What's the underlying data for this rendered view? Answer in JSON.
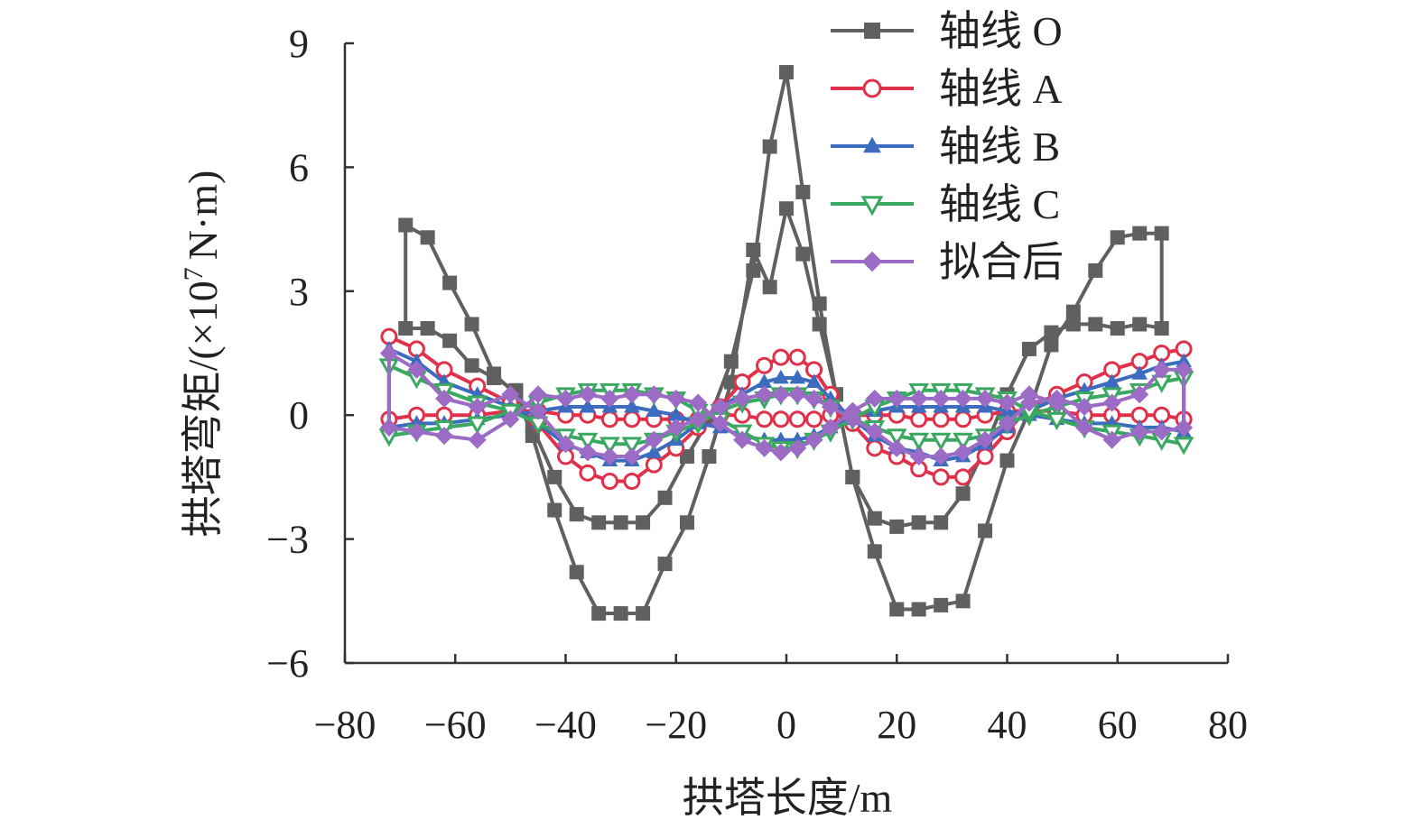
{
  "chart_data": {
    "type": "line",
    "title": "",
    "xlabel": "拱塔长度/m",
    "ylabel": "拱塔弯矩/(×10⁷ N·m)",
    "ylabel_parts": {
      "main": "拱塔弯矩/(",
      "times": "×10",
      "exp": "7",
      "unit": "N·m)"
    },
    "xlim": [
      -80,
      80
    ],
    "ylim": [
      -6,
      9
    ],
    "xticks": [
      -80,
      -60,
      -40,
      -20,
      0,
      20,
      40,
      60,
      80
    ],
    "yticks": [
      -6,
      -3,
      0,
      3,
      6,
      9
    ],
    "xtick_labels": [
      "−80",
      "−60",
      "−40",
      "−20",
      "0",
      "20",
      "40",
      "60",
      "80"
    ],
    "ytick_labels": [
      "−6",
      "−3",
      "0",
      "3",
      "6",
      "9"
    ],
    "grid": false,
    "legend_position": "top-right",
    "series": [
      {
        "name": "轴线 O",
        "color": "#606060",
        "marker": "square",
        "upper_x": [
          -69,
          -65,
          -61,
          -57,
          -53,
          -49,
          -46,
          -42,
          -38,
          -34,
          -30,
          -26,
          -22,
          -18,
          -14,
          -10,
          -6,
          -3,
          0,
          3,
          6,
          9,
          12,
          16,
          20,
          24,
          28,
          32,
          36,
          40,
          44,
          48,
          52,
          56,
          60,
          64,
          68
        ],
        "upper_y": [
          2.1,
          2.1,
          1.8,
          1.2,
          0.9,
          0.6,
          -0.3,
          -1.5,
          -2.4,
          -2.6,
          -2.6,
          -2.6,
          -2.0,
          -1.0,
          -0.1,
          1.3,
          3.5,
          6.5,
          8.3,
          5.4,
          2.7,
          0.5,
          -1.5,
          -2.5,
          -2.7,
          -2.6,
          -2.6,
          -1.9,
          -0.8,
          0.5,
          1.6,
          2.0,
          2.2,
          2.2,
          2.1,
          2.2,
          2.1
        ],
        "lower_x": [
          -69,
          -65,
          -61,
          -57,
          -53,
          -49,
          -46,
          -42,
          -38,
          -34,
          -30,
          -26,
          -22,
          -18,
          -14,
          -10,
          -6,
          -3,
          0,
          3,
          6,
          9,
          12,
          16,
          20,
          24,
          28,
          32,
          36,
          40,
          44,
          48,
          52,
          56,
          60,
          64,
          68
        ],
        "lower_y": [
          4.6,
          4.3,
          3.2,
          2.2,
          1.0,
          0.5,
          -0.5,
          -2.3,
          -3.8,
          -4.8,
          -4.8,
          -4.8,
          -3.6,
          -2.6,
          -1.0,
          0.8,
          4.0,
          3.1,
          5.0,
          3.9,
          2.2,
          0.5,
          -1.5,
          -3.3,
          -4.7,
          -4.7,
          -4.6,
          -4.5,
          -2.8,
          -1.1,
          0.1,
          1.7,
          2.5,
          3.5,
          4.3,
          4.4,
          4.4
        ]
      },
      {
        "name": "轴线 A",
        "color": "#e0304a",
        "marker": "circle-open",
        "upper_x": [
          -72,
          -67,
          -62,
          -56,
          -50,
          -45,
          -40,
          -36,
          -32,
          -28,
          -24,
          -20,
          -16,
          -12,
          -8,
          -4,
          -1,
          2,
          5,
          8,
          12,
          16,
          20,
          24,
          28,
          32,
          36,
          40,
          44,
          49,
          54,
          59,
          64,
          68,
          72
        ],
        "upper_y": [
          1.9,
          1.6,
          1.1,
          0.7,
          0.3,
          -0.2,
          -1.0,
          -1.4,
          -1.6,
          -1.6,
          -1.2,
          -0.8,
          -0.3,
          0.2,
          0.8,
          1.2,
          1.4,
          1.4,
          1.1,
          0.5,
          -0.2,
          -0.8,
          -1.0,
          -1.3,
          -1.5,
          -1.5,
          -1.0,
          -0.4,
          0.2,
          0.5,
          0.8,
          1.1,
          1.3,
          1.5,
          1.6
        ],
        "lower_x": [
          -72,
          -67,
          -62,
          -56,
          -50,
          -45,
          -40,
          -36,
          -32,
          -28,
          -24,
          -20,
          -16,
          -12,
          -8,
          -4,
          -1,
          2,
          5,
          8,
          12,
          16,
          20,
          24,
          28,
          32,
          36,
          40,
          44,
          49,
          54,
          59,
          64,
          68,
          72
        ],
        "lower_y": [
          -0.1,
          0.0,
          0.0,
          0.0,
          0.1,
          0.1,
          0.0,
          0.0,
          -0.1,
          -0.1,
          -0.1,
          -0.1,
          -0.1,
          0.0,
          0.0,
          -0.1,
          -0.1,
          -0.1,
          -0.1,
          0.0,
          0.0,
          0.0,
          0.0,
          -0.1,
          -0.1,
          -0.1,
          0.0,
          0.1,
          0.1,
          0.1,
          0.0,
          0.0,
          0.0,
          0.0,
          -0.1
        ]
      },
      {
        "name": "轴线 B",
        "color": "#3b6cc0",
        "marker": "triangle-up",
        "upper_x": [
          -72,
          -67,
          -62,
          -56,
          -50,
          -45,
          -40,
          -36,
          -32,
          -28,
          -24,
          -20,
          -16,
          -12,
          -8,
          -4,
          -1,
          2,
          5,
          8,
          12,
          16,
          20,
          24,
          28,
          32,
          36,
          40,
          44,
          49,
          54,
          59,
          64,
          68,
          72
        ],
        "upper_y": [
          1.6,
          1.3,
          0.8,
          0.5,
          0.2,
          -0.2,
          -0.7,
          -0.9,
          -1.1,
          -1.1,
          -0.9,
          -0.6,
          -0.2,
          0.2,
          0.5,
          0.8,
          0.9,
          0.9,
          0.8,
          0.4,
          -0.1,
          -0.5,
          -0.8,
          -0.9,
          -1.1,
          -1.0,
          -0.7,
          -0.3,
          0.1,
          0.4,
          0.6,
          0.8,
          1.0,
          1.2,
          1.3
        ],
        "lower_x": [
          -72,
          -67,
          -62,
          -56,
          -50,
          -45,
          -40,
          -36,
          -32,
          -28,
          -24,
          -20,
          -16,
          -12,
          -8,
          -4,
          -1,
          2,
          5,
          8,
          12,
          16,
          20,
          24,
          28,
          32,
          36,
          40,
          44,
          49,
          54,
          59,
          64,
          68,
          72
        ],
        "lower_y": [
          -0.3,
          -0.2,
          -0.2,
          -0.1,
          0.0,
          0.1,
          0.2,
          0.2,
          0.2,
          0.2,
          0.1,
          0.0,
          -0.2,
          -0.3,
          -0.5,
          -0.6,
          -0.6,
          -0.6,
          -0.5,
          -0.3,
          0.0,
          0.1,
          0.2,
          0.2,
          0.2,
          0.2,
          0.2,
          0.1,
          0.0,
          -0.1,
          -0.2,
          -0.2,
          -0.3,
          -0.3,
          -0.4
        ]
      },
      {
        "name": "轴线 C",
        "color": "#3aa860",
        "marker": "triangle-down-open",
        "upper_x": [
          -72,
          -67,
          -62,
          -56,
          -50,
          -45,
          -40,
          -36,
          -32,
          -28,
          -24,
          -20,
          -16,
          -12,
          -8,
          -4,
          -1,
          2,
          5,
          8,
          12,
          16,
          20,
          24,
          28,
          32,
          36,
          40,
          44,
          49,
          54,
          59,
          64,
          68,
          72
        ],
        "upper_y": [
          1.2,
          0.9,
          0.6,
          0.3,
          0.1,
          -0.2,
          -0.5,
          -0.6,
          -0.7,
          -0.7,
          -0.6,
          -0.4,
          -0.2,
          0.1,
          0.3,
          0.4,
          0.5,
          0.5,
          0.4,
          0.2,
          -0.1,
          -0.3,
          -0.5,
          -0.6,
          -0.6,
          -0.6,
          -0.5,
          -0.2,
          0.0,
          0.2,
          0.4,
          0.5,
          0.6,
          0.8,
          0.9
        ],
        "lower_x": [
          -72,
          -67,
          -62,
          -56,
          -50,
          -45,
          -40,
          -36,
          -32,
          -28,
          -24,
          -20,
          -16,
          -12,
          -8,
          -4,
          -1,
          2,
          5,
          8,
          12,
          16,
          20,
          24,
          28,
          32,
          36,
          40,
          44,
          49,
          54,
          59,
          64,
          68,
          72
        ],
        "lower_y": [
          -0.5,
          -0.4,
          -0.3,
          -0.2,
          0.1,
          0.3,
          0.5,
          0.6,
          0.6,
          0.6,
          0.5,
          0.4,
          0.1,
          -0.1,
          -0.4,
          -0.7,
          -0.8,
          -0.8,
          -0.6,
          -0.4,
          -0.1,
          0.2,
          0.4,
          0.6,
          0.6,
          0.6,
          0.5,
          0.4,
          0.1,
          -0.1,
          -0.3,
          -0.4,
          -0.5,
          -0.6,
          -0.7
        ]
      },
      {
        "name": "拟合后",
        "color": "#9b6bc6",
        "marker": "diamond",
        "upper_x": [
          -72,
          -67,
          -62,
          -56,
          -50,
          -45,
          -40,
          -36,
          -32,
          -28,
          -24,
          -20,
          -16,
          -12,
          -8,
          -4,
          -1,
          2,
          5,
          8,
          12,
          16,
          20,
          24,
          28,
          32,
          36,
          40,
          44,
          49,
          54,
          59,
          64,
          68,
          72
        ],
        "upper_y": [
          1.5,
          1.1,
          0.4,
          0.2,
          0.5,
          0.1,
          -0.7,
          -0.9,
          -1.0,
          -1.0,
          -0.6,
          -0.3,
          -0.1,
          0.2,
          0.4,
          0.5,
          0.5,
          0.5,
          0.4,
          0.2,
          -0.1,
          -0.4,
          -0.8,
          -1.0,
          -1.0,
          -0.9,
          -0.6,
          -0.2,
          0.3,
          0.4,
          0.2,
          0.3,
          0.5,
          1.1,
          1.1
        ],
        "lower_x": [
          -72,
          -67,
          -62,
          -56,
          -50,
          -45,
          -40,
          -36,
          -32,
          -28,
          -24,
          -20,
          -16,
          -12,
          -8,
          -4,
          -1,
          2,
          5,
          8,
          12,
          16,
          20,
          24,
          28,
          32,
          36,
          40,
          44,
          49,
          54,
          59,
          64,
          68,
          72
        ],
        "lower_y": [
          -0.3,
          -0.4,
          -0.5,
          -0.6,
          -0.1,
          0.5,
          0.4,
          0.5,
          0.4,
          0.5,
          0.5,
          0.4,
          0.3,
          -0.2,
          -0.6,
          -0.8,
          -0.9,
          -0.8,
          -0.6,
          -0.3,
          0.1,
          0.4,
          0.4,
          0.4,
          0.4,
          0.4,
          0.4,
          0.3,
          0.5,
          0.3,
          -0.3,
          -0.6,
          -0.4,
          -0.4,
          -0.3
        ]
      }
    ]
  }
}
